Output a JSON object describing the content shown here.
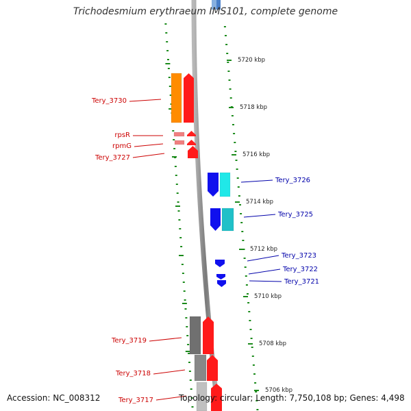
{
  "title": "Trichodesmium erythraeum IMS101, complete genome",
  "footer": {
    "accession": "Accession: NC_008312",
    "topology": "Topology: circular; Length: 7,750,108 bp; Genes: 4,498"
  },
  "colors": {
    "forward_label": "#cc0000",
    "reverse_label": "#0000aa",
    "tick": "#1a8a1a",
    "backbone": "#8a8a8a"
  },
  "scale_labels": [
    "5720 kbp",
    "5718 kbp",
    "5716 kbp",
    "5714 kbp",
    "5712 kbp",
    "5710 kbp",
    "5708 kbp",
    "5706 kbp"
  ],
  "genes": [
    {
      "label": "Tery_3730",
      "strand": "forward",
      "color": "#ff8c00"
    },
    {
      "label": "rpsR",
      "strand": "forward",
      "color": "#f08080"
    },
    {
      "label": "rpmG",
      "strand": "forward",
      "color": "#f08080"
    },
    {
      "label": "Tery_3727",
      "strand": "forward",
      "color": "#ff0000"
    },
    {
      "label": "Tery_3726",
      "strand": "reverse",
      "color": "#0000ff"
    },
    {
      "label": "Tery_3725",
      "strand": "reverse",
      "color": "#0000ff"
    },
    {
      "label": "Tery_3723",
      "strand": "reverse",
      "color": "#0000ff"
    },
    {
      "label": "Tery_3722",
      "strand": "reverse",
      "color": "#0000ff"
    },
    {
      "label": "Tery_3721",
      "strand": "reverse",
      "color": "#0000ff"
    },
    {
      "label": "Tery_3719",
      "strand": "forward",
      "color": "#707070"
    },
    {
      "label": "Tery_3718",
      "strand": "forward",
      "color": "#808080"
    },
    {
      "label": "Tery_3717",
      "strand": "forward",
      "color": "#c0c0c0"
    }
  ]
}
